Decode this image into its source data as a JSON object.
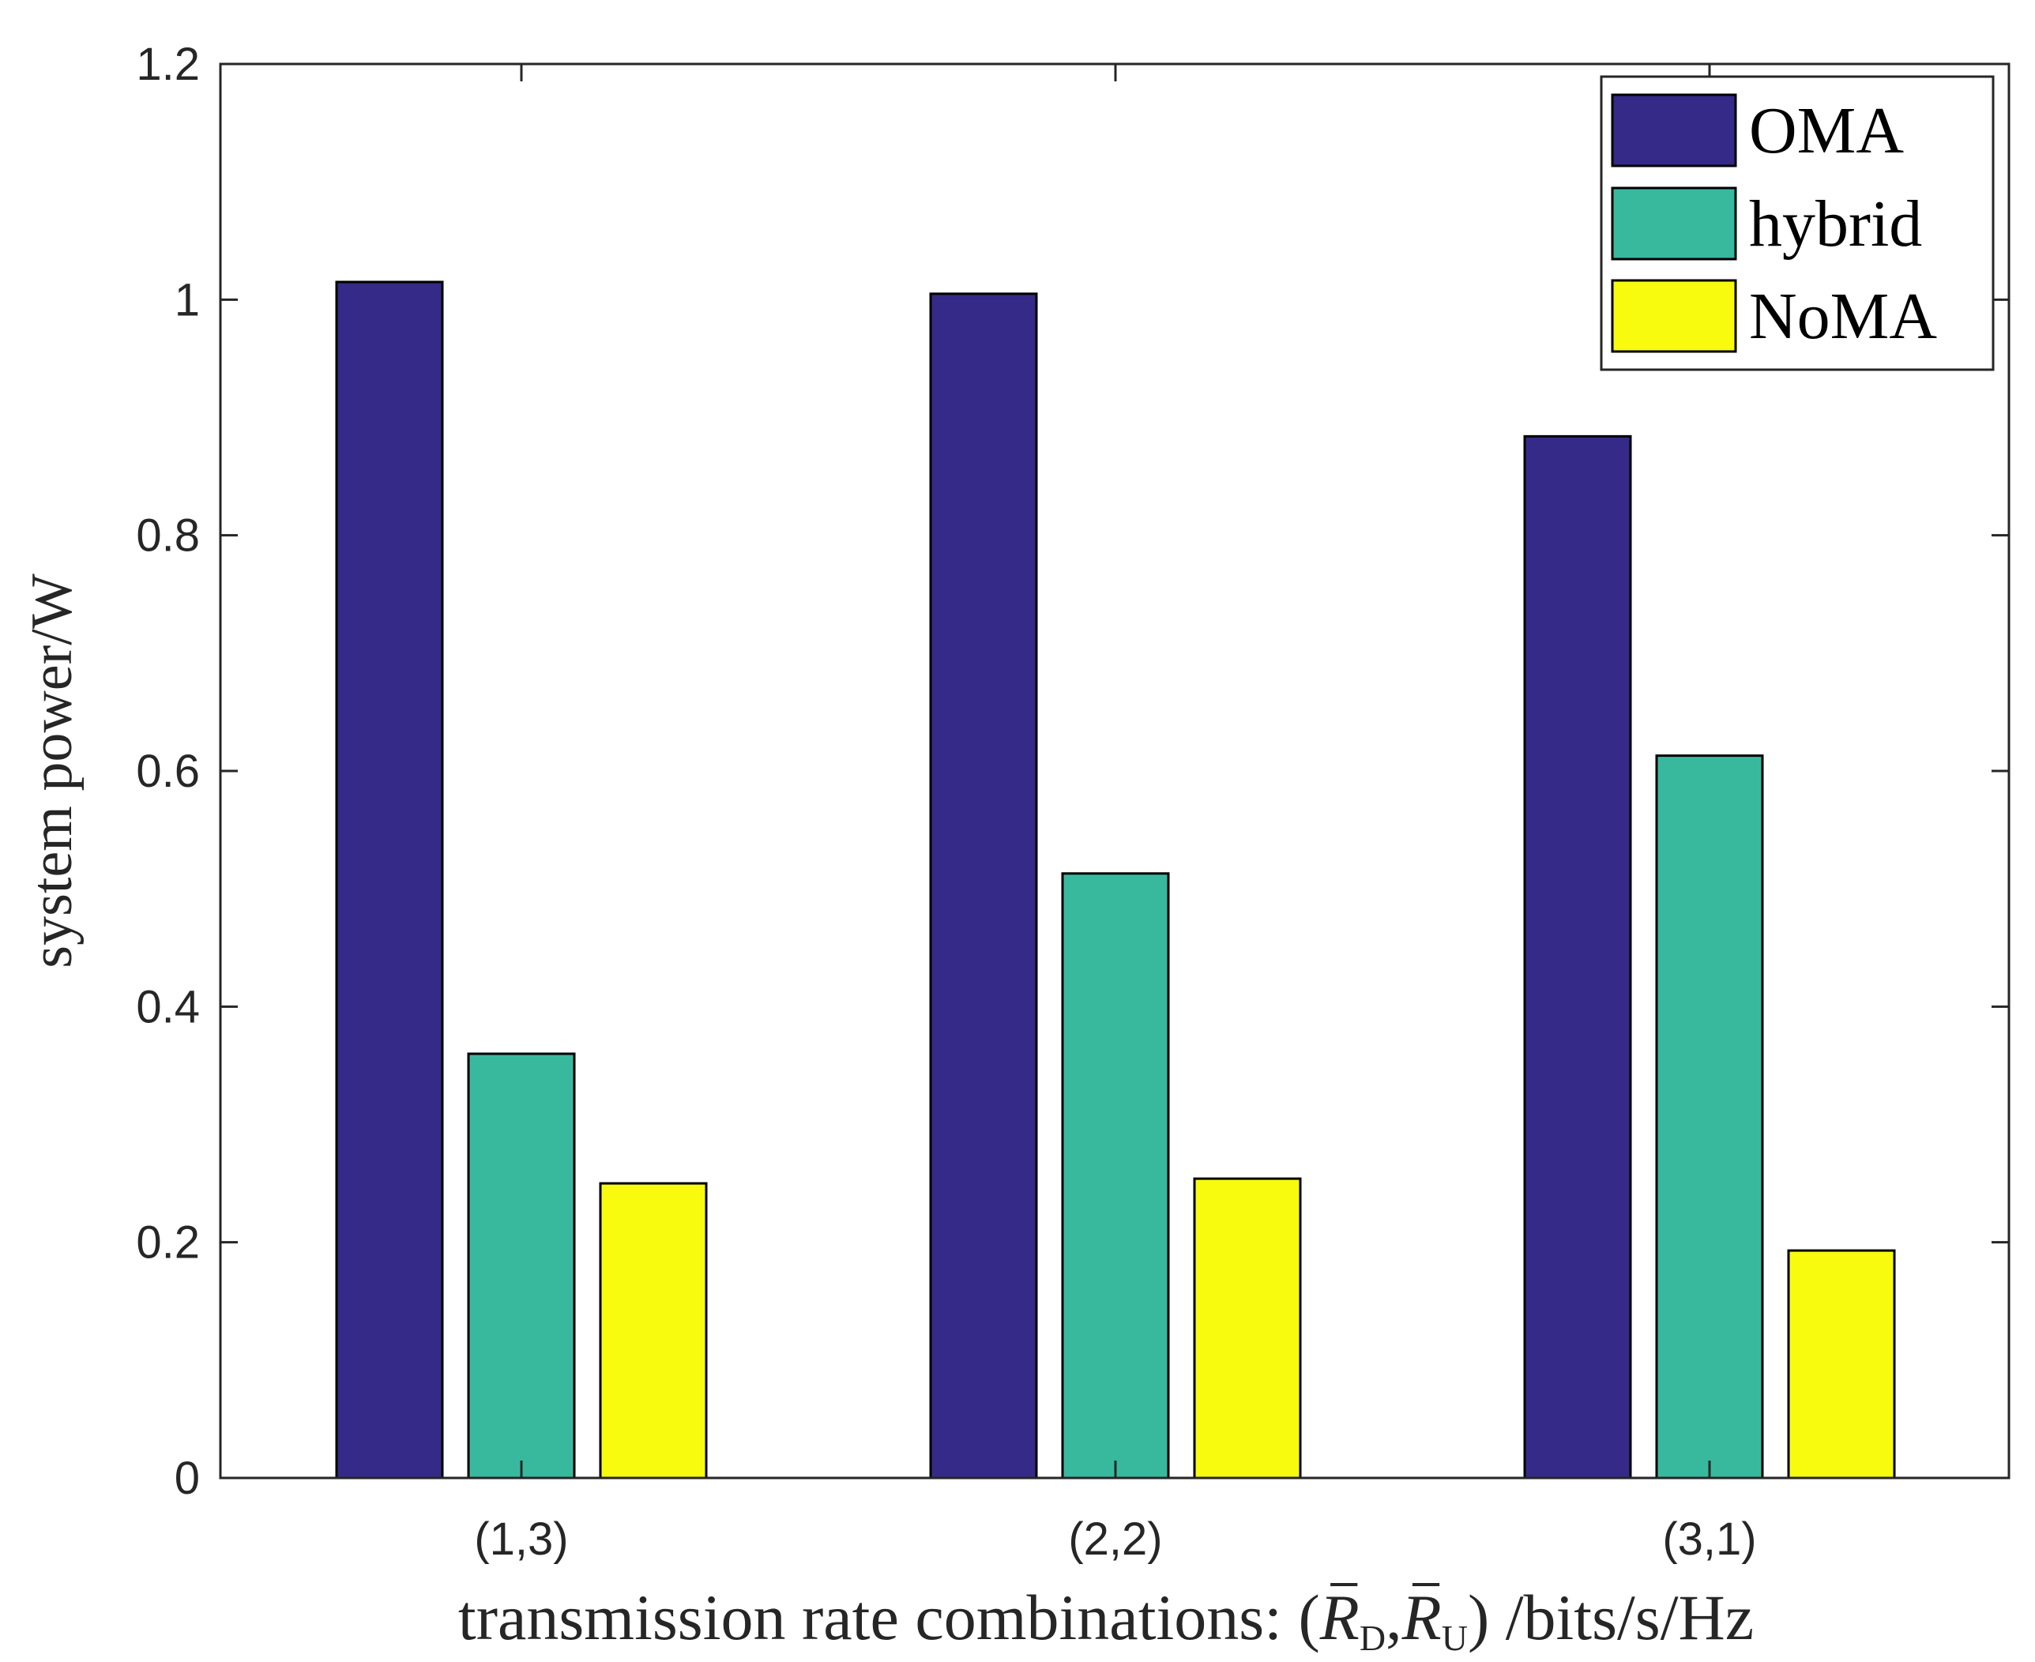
{
  "chart_data": {
    "type": "bar",
    "categories": [
      "(1,3)",
      "(2,2)",
      "(3,1)"
    ],
    "series": [
      {
        "name": "OMA",
        "color": "#352a87",
        "values": [
          1.015,
          1.005,
          0.884
        ]
      },
      {
        "name": "hybrid",
        "color": "#38b99e",
        "values": [
          0.36,
          0.513,
          0.613
        ]
      },
      {
        "name": "NoMA",
        "color": "#f9fb0e",
        "values": [
          0.25,
          0.254,
          0.193
        ]
      }
    ],
    "ylabel": "system power/W",
    "xlabel": {
      "prefix": "transmission rate combinations: (",
      "r": "R",
      "sub_d": "D",
      "comma": ",",
      "sub_u": "U",
      "suffix": ") /bits/s/Hz"
    },
    "ylim": [
      0,
      1.2
    ],
    "yticks": [
      "0",
      "0.2",
      "0.4",
      "0.6",
      "0.8",
      "1",
      "1.2"
    ],
    "grid": false,
    "legend_position": "top-right"
  }
}
